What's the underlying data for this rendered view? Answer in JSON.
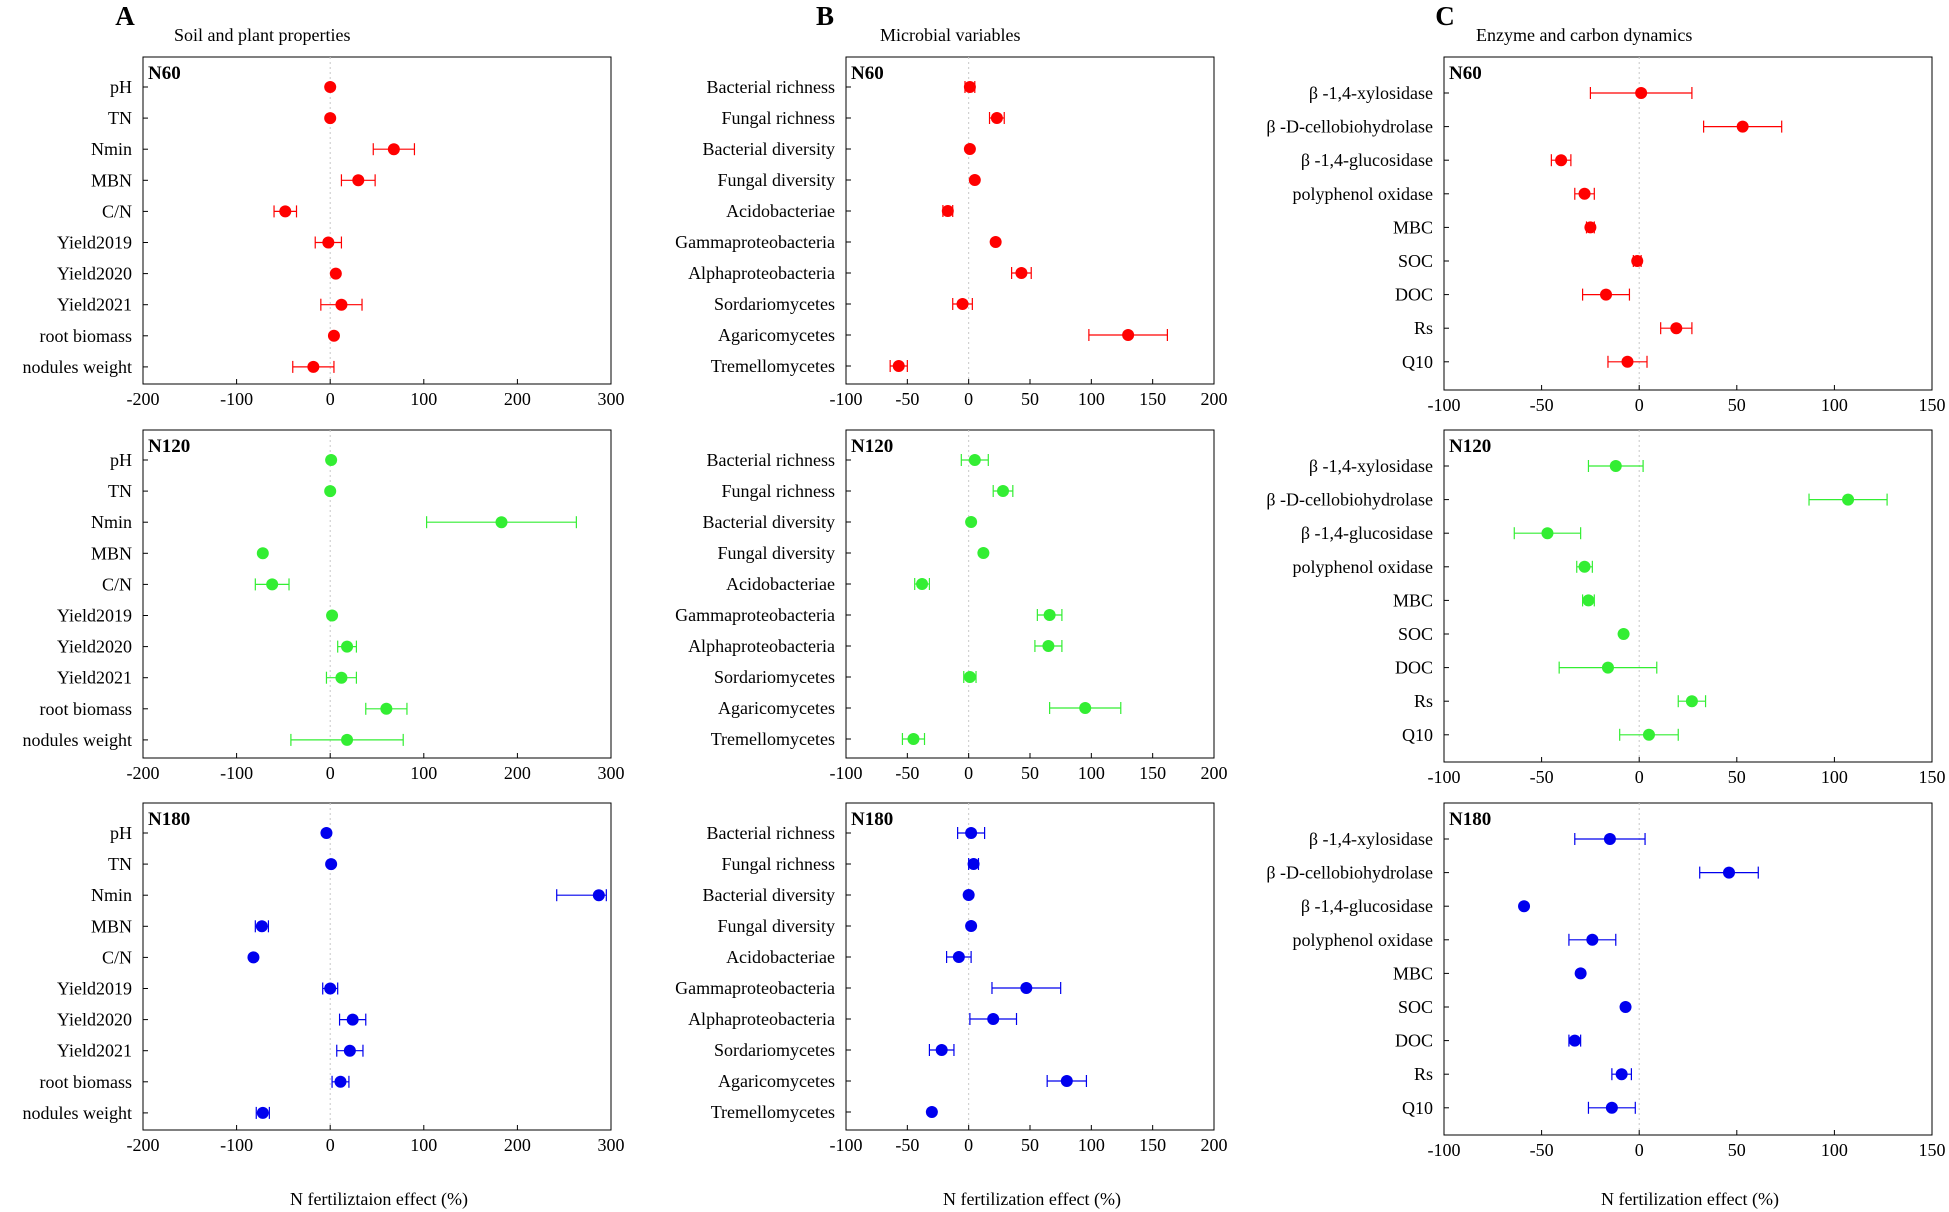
{
  "colors": {
    "N60": "#ff0000",
    "N120": "#33ee33",
    "N180": "#0000ee"
  },
  "columns": [
    {
      "letter": "A",
      "title": "Soil and plant properties",
      "xlabel": "N fertiliztaion effect (%)"
    },
    {
      "letter": "B",
      "title": "Microbial variables",
      "xlabel": "N fertilization effect (%)"
    },
    {
      "letter": "C",
      "title": "Enzyme and carbon dynamics",
      "xlabel": "N fertilization effect (%)"
    }
  ],
  "chart_data": [
    {
      "type": "scatter",
      "column": "A",
      "panel": "N60",
      "color_key": "N60",
      "xlim": [
        -200,
        300
      ],
      "xticks": [
        "-200",
        "-100",
        "0",
        "100",
        "200",
        "300"
      ],
      "categories": [
        "pH",
        "TN",
        "Nmin",
        "MBN",
        "C/N",
        "Yield2019",
        "Yield2020",
        "Yield2021",
        "root biomass",
        "nodules weight"
      ],
      "values": [
        0,
        0,
        68,
        30,
        -48,
        -2,
        6,
        12,
        4,
        -18
      ],
      "err_low": [
        0,
        0,
        22,
        18,
        12,
        14,
        0,
        22,
        0,
        22
      ],
      "err_high": [
        0,
        0,
        22,
        18,
        12,
        14,
        0,
        22,
        0,
        22
      ]
    },
    {
      "type": "scatter",
      "column": "A",
      "panel": "N120",
      "color_key": "N120",
      "xlim": [
        -200,
        300
      ],
      "xticks": [
        "-200",
        "-100",
        "0",
        "100",
        "200",
        "300"
      ],
      "categories": [
        "pH",
        "TN",
        "Nmin",
        "MBN",
        "C/N",
        "Yield2019",
        "Yield2020",
        "Yield2021",
        "root biomass",
        "nodules weight"
      ],
      "values": [
        1,
        0,
        183,
        -72,
        -62,
        2,
        18,
        12,
        60,
        18
      ],
      "err_low": [
        0,
        0,
        80,
        0,
        18,
        0,
        10,
        16,
        22,
        60
      ],
      "err_high": [
        0,
        0,
        80,
        0,
        18,
        0,
        10,
        16,
        22,
        60
      ]
    },
    {
      "type": "scatter",
      "column": "A",
      "panel": "N180",
      "color_key": "N180",
      "xlim": [
        -200,
        300
      ],
      "xticks": [
        "-200",
        "-100",
        "0",
        "100",
        "200",
        "300"
      ],
      "categories": [
        "pH",
        "TN",
        "Nmin",
        "MBN",
        "C/N",
        "Yield2019",
        "Yield2020",
        "Yield2021",
        "root biomass",
        "nodules weight"
      ],
      "values": [
        -4,
        1,
        287,
        -73,
        -82,
        0,
        24,
        21,
        11,
        -72
      ],
      "err_low": [
        0,
        0,
        45,
        7,
        0,
        8,
        14,
        14,
        9,
        7
      ],
      "err_high": [
        0,
        0,
        8,
        7,
        0,
        8,
        14,
        14,
        9,
        7
      ]
    },
    {
      "type": "scatter",
      "column": "B",
      "panel": "N60",
      "color_key": "N60",
      "xlim": [
        -100,
        200
      ],
      "xticks": [
        "-100",
        "-50",
        "0",
        "50",
        "100",
        "150",
        "200"
      ],
      "categories": [
        "Bacterial richness",
        "Fungal richness",
        "Bacterial diversity",
        "Fungal diversity",
        "Acidobacteriae",
        "Gammaproteobacteria",
        "Alphaproteobacteria",
        "Sordariomycetes",
        "Agaricomycetes",
        "Tremellomycetes"
      ],
      "values": [
        1,
        23,
        1,
        5,
        -17,
        22,
        43,
        -5,
        130,
        -57
      ],
      "err_low": [
        4,
        6,
        0,
        0,
        4,
        0,
        8,
        8,
        32,
        7
      ],
      "err_high": [
        4,
        6,
        0,
        0,
        4,
        0,
        8,
        8,
        32,
        7
      ]
    },
    {
      "type": "scatter",
      "column": "B",
      "panel": "N120",
      "color_key": "N120",
      "xlim": [
        -100,
        200
      ],
      "xticks": [
        "-100",
        "-50",
        "0",
        "50",
        "100",
        "150",
        "200"
      ],
      "categories": [
        "Bacterial richness",
        "Fungal richness",
        "Bacterial diversity",
        "Fungal diversity",
        "Acidobacteriae",
        "Gammaproteobacteria",
        "Alphaproteobacteria",
        "Sordariomycetes",
        "Agaricomycetes",
        "Tremellomycetes"
      ],
      "values": [
        5,
        28,
        2,
        12,
        -38,
        66,
        65,
        1,
        95,
        -45
      ],
      "err_low": [
        11,
        8,
        0,
        0,
        6,
        10,
        11,
        5,
        29,
        9
      ],
      "err_high": [
        11,
        8,
        0,
        0,
        6,
        10,
        11,
        5,
        29,
        9
      ]
    },
    {
      "type": "scatter",
      "column": "B",
      "panel": "N180",
      "color_key": "N180",
      "xlim": [
        -100,
        200
      ],
      "xticks": [
        "-100",
        "-50",
        "0",
        "50",
        "100",
        "150",
        "200"
      ],
      "categories": [
        "Bacterial richness",
        "Fungal richness",
        "Bacterial diversity",
        "Fungal diversity",
        "Acidobacteriae",
        "Gammaproteobacteria",
        "Alphaproteobacteria",
        "Sordariomycetes",
        "Agaricomycetes",
        "Tremellomycetes"
      ],
      "values": [
        2,
        4,
        0,
        2,
        -8,
        47,
        20,
        -22,
        80,
        -30
      ],
      "err_low": [
        11,
        4,
        0,
        0,
        10,
        28,
        19,
        10,
        16,
        0
      ],
      "err_high": [
        11,
        4,
        0,
        0,
        10,
        28,
        19,
        10,
        16,
        0
      ]
    },
    {
      "type": "scatter",
      "column": "C",
      "panel": "N60",
      "color_key": "N60",
      "xlim": [
        -100,
        150
      ],
      "xticks": [
        "-100",
        "-50",
        "0",
        "50",
        "100",
        "150"
      ],
      "categories": [
        "β -1,4-xylosidase",
        "β -D-cellobiohydrolase",
        "β -1,4-glucosidase",
        "polyphenol oxidase",
        "MBC",
        "SOC",
        "DOC",
        "Rs",
        "Q10"
      ],
      "values": [
        1,
        53,
        -40,
        -28,
        -25,
        -1,
        -17,
        19,
        -6
      ],
      "err_low": [
        26,
        20,
        5,
        5,
        2,
        2,
        12,
        8,
        10
      ],
      "err_high": [
        26,
        20,
        5,
        5,
        2,
        2,
        12,
        8,
        10
      ]
    },
    {
      "type": "scatter",
      "column": "C",
      "panel": "N120",
      "color_key": "N120",
      "xlim": [
        -100,
        150
      ],
      "xticks": [
        "-100",
        "-50",
        "0",
        "50",
        "100",
        "150"
      ],
      "categories": [
        "β -1,4-xylosidase",
        "β -D-cellobiohydrolase",
        "β -1,4-glucosidase",
        "polyphenol oxidase",
        "MBC",
        "SOC",
        "DOC",
        "Rs",
        "Q10"
      ],
      "values": [
        -12,
        107,
        -47,
        -28,
        -26,
        -8,
        -16,
        27,
        5
      ],
      "err_low": [
        14,
        20,
        17,
        4,
        3,
        0,
        25,
        7,
        15
      ],
      "err_high": [
        14,
        20,
        17,
        4,
        3,
        0,
        25,
        7,
        15
      ]
    },
    {
      "type": "scatter",
      "column": "C",
      "panel": "N180",
      "color_key": "N180",
      "xlim": [
        -100,
        150
      ],
      "xticks": [
        "-100",
        "-50",
        "0",
        "50",
        "100",
        "150"
      ],
      "categories": [
        "β -1,4-xylosidase",
        "β -D-cellobiohydrolase",
        "β -1,4-glucosidase",
        "polyphenol oxidase",
        "MBC",
        "SOC",
        "DOC",
        "Rs",
        "Q10"
      ],
      "values": [
        -15,
        46,
        -59,
        -24,
        -30,
        -7,
        -33,
        -9,
        -14
      ],
      "err_low": [
        18,
        15,
        0,
        12,
        0,
        0,
        3,
        5,
        12
      ],
      "err_high": [
        18,
        15,
        0,
        12,
        0,
        0,
        3,
        5,
        12
      ]
    }
  ]
}
